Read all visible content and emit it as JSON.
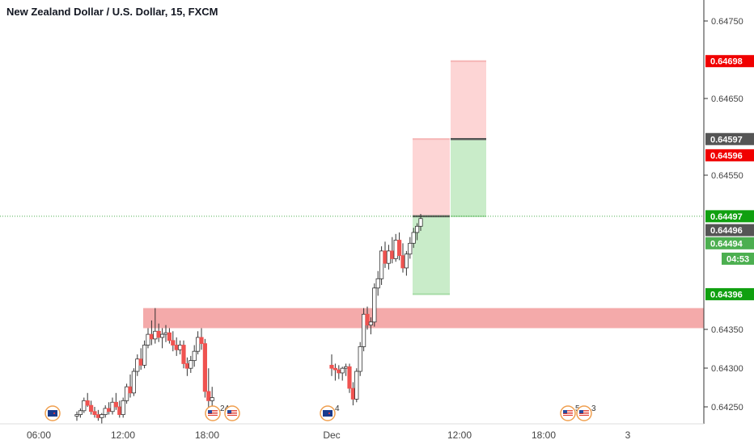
{
  "header": {
    "title": "New Zealand Dollar / U.S. Dollar, 15, FXCM"
  },
  "colors": {
    "up": "#26a69a",
    "down": "#ef5350",
    "candle_body_up": "#ffffff",
    "wick": "#333333",
    "zone": "#f4aaaa",
    "stop_zone": "#fdd5d5",
    "target_zone": "#c9ecc9",
    "label_red": "#f00000",
    "label_green": "#10a010",
    "label_green_light": "#4caf50",
    "label_dark": "#555555",
    "axis_line": "#333333",
    "price_line": "#4caf50"
  },
  "chart_data": {
    "type": "candlestick",
    "symbol": "NZDUSD",
    "interval": "15",
    "title": "New Zealand Dollar / U.S. Dollar, 15, FXCM",
    "y_axis": {
      "ticks": [
        "0.64750",
        "0.64650",
        "0.64550",
        "0.64350",
        "0.64300",
        "0.64250"
      ],
      "range": [
        0.64225,
        0.6477
      ]
    },
    "x_axis": {
      "ticks": [
        "06:00",
        "12:00",
        "18:00",
        "Dec",
        "12:00",
        "18:00",
        "3"
      ]
    },
    "price_labels": [
      {
        "value": "0.64698",
        "price": 0.64698,
        "color": "red"
      },
      {
        "value": "0.64597",
        "price": 0.64597,
        "color": "dark"
      },
      {
        "value": "0.64596",
        "price": 0.64576,
        "color": "red"
      },
      {
        "value": "0.64497",
        "price": 0.64497,
        "color": "green"
      },
      {
        "value": "0.64496",
        "price": 0.64479,
        "color": "dark"
      },
      {
        "value": "0.64494",
        "price": 0.64462,
        "color": "green_light"
      },
      {
        "value": "04:53",
        "price": 0.64442,
        "color": "green_light"
      },
      {
        "value": "0.64396",
        "price": 0.64396,
        "color": "green"
      }
    ],
    "current_price": 0.64497,
    "zone": {
      "top": 0.64378,
      "bottom": 0.64352
    },
    "positions": [
      {
        "entry": 0.64497,
        "stop": 0.64597,
        "target": 0.64396,
        "side": "short"
      },
      {
        "entry": 0.64597,
        "stop": 0.64698,
        "target": 0.64497,
        "side": "short"
      }
    ],
    "candles_day1": [
      [
        0.64238,
        0.64244,
        0.64232,
        0.6424
      ],
      [
        0.6424,
        0.64248,
        0.64236,
        0.64245
      ],
      [
        0.64245,
        0.64262,
        0.64242,
        0.64258
      ],
      [
        0.64258,
        0.64268,
        0.6425,
        0.64252
      ],
      [
        0.64252,
        0.64258,
        0.6424,
        0.64244
      ],
      [
        0.64244,
        0.6425,
        0.64236,
        0.6424
      ],
      [
        0.6424,
        0.64246,
        0.64232,
        0.64236
      ],
      [
        0.64236,
        0.64242,
        0.64228,
        0.6424
      ],
      [
        0.6424,
        0.64252,
        0.64236,
        0.64248
      ],
      [
        0.64248,
        0.64256,
        0.6424,
        0.64244
      ],
      [
        0.64244,
        0.64262,
        0.6424,
        0.64256
      ],
      [
        0.64256,
        0.64268,
        0.64246,
        0.6425
      ],
      [
        0.6425,
        0.64258,
        0.64236,
        0.6424
      ],
      [
        0.6424,
        0.64262,
        0.64236,
        0.64258
      ],
      [
        0.64258,
        0.6428,
        0.64254,
        0.64276
      ],
      [
        0.64276,
        0.64292,
        0.64262,
        0.64268
      ],
      [
        0.64268,
        0.643,
        0.64264,
        0.64296
      ],
      [
        0.64296,
        0.64318,
        0.6429,
        0.64312
      ],
      [
        0.64312,
        0.64326,
        0.64298,
        0.64304
      ],
      [
        0.64304,
        0.64336,
        0.643,
        0.6433
      ],
      [
        0.6433,
        0.64352,
        0.64326,
        0.64344
      ],
      [
        0.64344,
        0.64362,
        0.6433,
        0.64338
      ],
      [
        0.64338,
        0.64378,
        0.64332,
        0.64348
      ],
      [
        0.64348,
        0.64358,
        0.64334,
        0.6434
      ],
      [
        0.6434,
        0.64352,
        0.64326,
        0.64344
      ],
      [
        0.64344,
        0.64356,
        0.64334,
        0.64346
      ],
      [
        0.64346,
        0.64352,
        0.64332,
        0.64336
      ],
      [
        0.64336,
        0.64348,
        0.64322,
        0.6433
      ],
      [
        0.6433,
        0.6434,
        0.64316,
        0.64324
      ],
      [
        0.64324,
        0.64336,
        0.64318,
        0.6433
      ],
      [
        0.6433,
        0.64336,
        0.643,
        0.64306
      ],
      [
        0.64306,
        0.64314,
        0.6429,
        0.643
      ],
      [
        0.643,
        0.64316,
        0.64294,
        0.6431
      ],
      [
        0.6431,
        0.6433,
        0.64302,
        0.64322
      ],
      [
        0.64322,
        0.64348,
        0.64318,
        0.6434
      ],
      [
        0.6434,
        0.64352,
        0.64324,
        0.64332
      ],
      [
        0.64332,
        0.64338,
        0.64262,
        0.6427
      ],
      [
        0.6427,
        0.643,
        0.64248,
        0.64258
      ],
      [
        0.64258,
        0.64276,
        0.64246,
        0.64262
      ]
    ],
    "candles_day2": [
      [
        0.64304,
        0.64318,
        0.6429,
        0.643
      ],
      [
        0.643,
        0.64306,
        0.64284,
        0.64298
      ],
      [
        0.64298,
        0.64304,
        0.64286,
        0.64294
      ],
      [
        0.64294,
        0.64302,
        0.64284,
        0.643
      ],
      [
        0.643,
        0.64306,
        0.6429,
        0.64302
      ],
      [
        0.64302,
        0.64306,
        0.64268,
        0.64274
      ],
      [
        0.64274,
        0.64282,
        0.64252,
        0.6426
      ],
      [
        0.6426,
        0.643,
        0.64256,
        0.64296
      ],
      [
        0.64296,
        0.64334,
        0.6429,
        0.64328
      ],
      [
        0.64328,
        0.64378,
        0.64322,
        0.6437
      ],
      [
        0.6437,
        0.6438,
        0.6435,
        0.64356
      ],
      [
        0.64356,
        0.64366,
        0.64344,
        0.6436
      ],
      [
        0.6436,
        0.6441,
        0.64354,
        0.64404
      ],
      [
        0.64404,
        0.64426,
        0.64394,
        0.64416
      ],
      [
        0.64416,
        0.64458,
        0.64408,
        0.64452
      ],
      [
        0.64452,
        0.64464,
        0.6443,
        0.64436
      ],
      [
        0.64436,
        0.6446,
        0.64428,
        0.64452
      ],
      [
        0.64452,
        0.6447,
        0.64436,
        0.64442
      ],
      [
        0.64442,
        0.64474,
        0.64438,
        0.64466
      ],
      [
        0.64466,
        0.64476,
        0.6444,
        0.64446
      ],
      [
        0.64446,
        0.64462,
        0.64424,
        0.6443
      ],
      [
        0.6443,
        0.64452,
        0.6442,
        0.64448
      ],
      [
        0.64448,
        0.6447,
        0.64442,
        0.64462
      ],
      [
        0.64462,
        0.64482,
        0.64456,
        0.64476
      ],
      [
        0.64476,
        0.64488,
        0.64466,
        0.64484
      ],
      [
        0.64484,
        0.645,
        0.64478,
        0.64494
      ]
    ],
    "events": [
      {
        "flag": "nz",
        "count": ""
      },
      {
        "flag": "us",
        "count": "24"
      },
      {
        "flag": "us",
        "count": ""
      },
      {
        "flag": "nz",
        "count": "4"
      },
      {
        "flag": "us",
        "count": "5"
      },
      {
        "flag": "us",
        "count": "3"
      }
    ]
  }
}
